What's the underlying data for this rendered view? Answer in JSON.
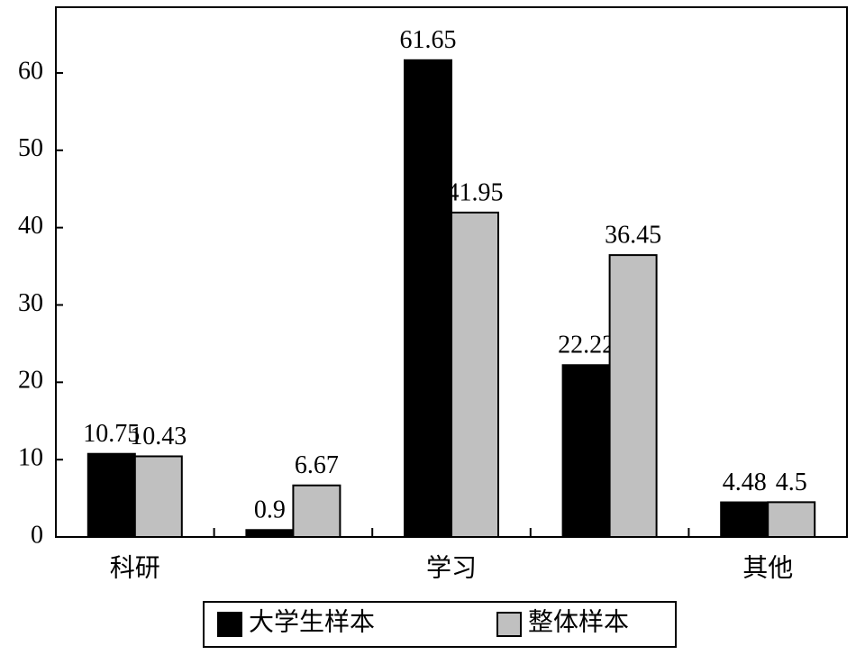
{
  "chart_data": {
    "type": "bar",
    "categories": [
      "科研",
      null,
      "学习",
      null,
      "其他"
    ],
    "series": [
      {
        "name": "大学生样本",
        "color": "#000000",
        "values": [
          10.75,
          0.9,
          61.65,
          22.22,
          4.48
        ]
      },
      {
        "name": "整体样本",
        "color": "#c0c0c0",
        "values": [
          10.43,
          6.67,
          41.95,
          36.45,
          4.5
        ]
      }
    ],
    "ylim": [
      0,
      68.5
    ],
    "yticks": [
      0,
      10,
      20,
      30,
      40,
      50,
      60
    ],
    "grid": false,
    "legend": "bottom"
  }
}
